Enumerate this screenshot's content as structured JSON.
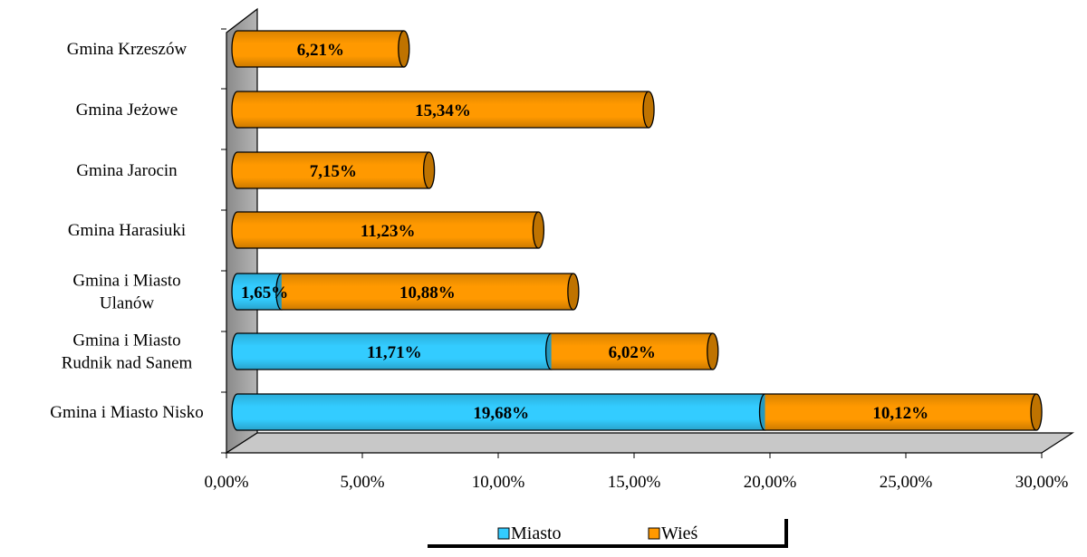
{
  "chart_data": {
    "type": "bar",
    "orientation": "horizontal",
    "stacked": true,
    "categories": [
      "Gmina i Miasto Nisko",
      "Gmina i Miasto Rudnik nad Sanem",
      "Gmina i Miasto Ulanów",
      "Gmina Harasiuki",
      "Gmina Jarocin",
      "Gmina Jeżowe",
      "Gmina Krzeszów"
    ],
    "category_label_lines": [
      [
        "Gmina i Miasto Nisko"
      ],
      [
        "Gmina i Miasto",
        "Rudnik nad Sanem"
      ],
      [
        "Gmina i Miasto",
        "Ulanów"
      ],
      [
        "Gmina Harasiuki"
      ],
      [
        "Gmina Jarocin"
      ],
      [
        "Gmina Jeżowe"
      ],
      [
        "Gmina Krzeszów"
      ]
    ],
    "series": [
      {
        "name": "Miasto",
        "color": "#33CCFF",
        "values": [
          19.68,
          11.71,
          1.65,
          0,
          0,
          0,
          0
        ],
        "labels": [
          "19,68%",
          "11,71%",
          "1,65%",
          "",
          "",
          "",
          ""
        ]
      },
      {
        "name": "Wieś",
        "color": "#FF9900",
        "values": [
          10.12,
          6.02,
          10.88,
          11.23,
          7.15,
          15.34,
          6.21
        ],
        "labels": [
          "10,12%",
          "6,02%",
          "10,88%",
          "11,23%",
          "7,15%",
          "15,34%",
          "6,21%"
        ]
      }
    ],
    "x_ticks": [
      0,
      5,
      10,
      15,
      20,
      25,
      30
    ],
    "x_tick_labels": [
      "0,00%",
      "5,00%",
      "10,00%",
      "15,00%",
      "20,00%",
      "25,00%",
      "30,00%"
    ],
    "xlim": [
      0,
      30
    ],
    "title": "",
    "xlabel": "",
    "ylabel": "",
    "grid": false,
    "legend_position": "bottom",
    "style": "3d-cylinder"
  }
}
